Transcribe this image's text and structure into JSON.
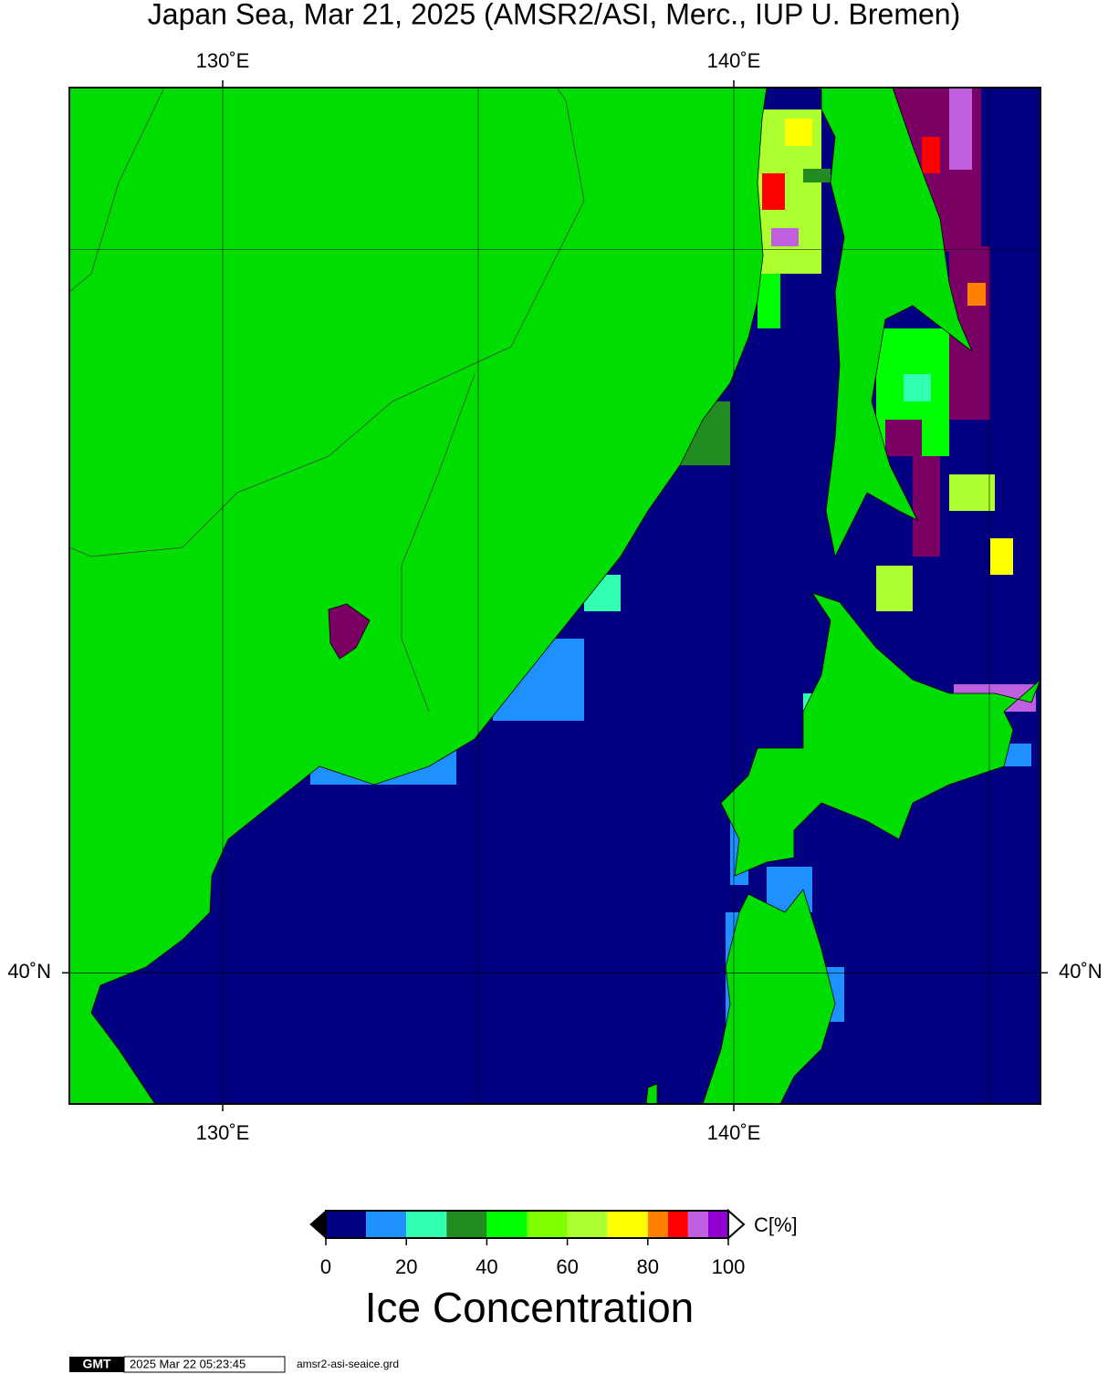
{
  "title": "Japan Sea, Mar 21, 2025 (AMSR2/ASI, Merc., IUP U. Bremen)",
  "map": {
    "type": "map",
    "projection": "mercator",
    "xlim": [
      127,
      146
    ],
    "ylim": [
      38,
      52
    ],
    "xticks": [
      {
        "value": 130,
        "label": "130˚E"
      },
      {
        "value": 140,
        "label": "140˚E"
      }
    ],
    "yticks": [
      {
        "value": 40,
        "label": "40˚N"
      }
    ],
    "xgrid": [
      130,
      135,
      140,
      145
    ],
    "ygrid": [
      40,
      50
    ],
    "sea_color": "#000080",
    "land_color": "#00dd00",
    "lake_ice_color": "#7a0066"
  },
  "colorbar": {
    "label": "C[%]",
    "title": "Ice Concentration",
    "levels": [
      0,
      10,
      20,
      30,
      40,
      50,
      60,
      70,
      80,
      85,
      90,
      95,
      100
    ],
    "colors": [
      "#000080",
      "#1e90ff",
      "#33ffb0",
      "#228b22",
      "#00ff00",
      "#7fff00",
      "#adff2f",
      "#ffff00",
      "#ff8000",
      "#ff0000",
      "#c060e0",
      "#9000d0"
    ],
    "ticks": [
      0,
      20,
      40,
      60,
      80,
      100
    ]
  },
  "footer": {
    "logo": "GMT",
    "timestamp": "2025 Mar 22 05:23:45",
    "file": "amsr2-asi-seaice.grd"
  }
}
